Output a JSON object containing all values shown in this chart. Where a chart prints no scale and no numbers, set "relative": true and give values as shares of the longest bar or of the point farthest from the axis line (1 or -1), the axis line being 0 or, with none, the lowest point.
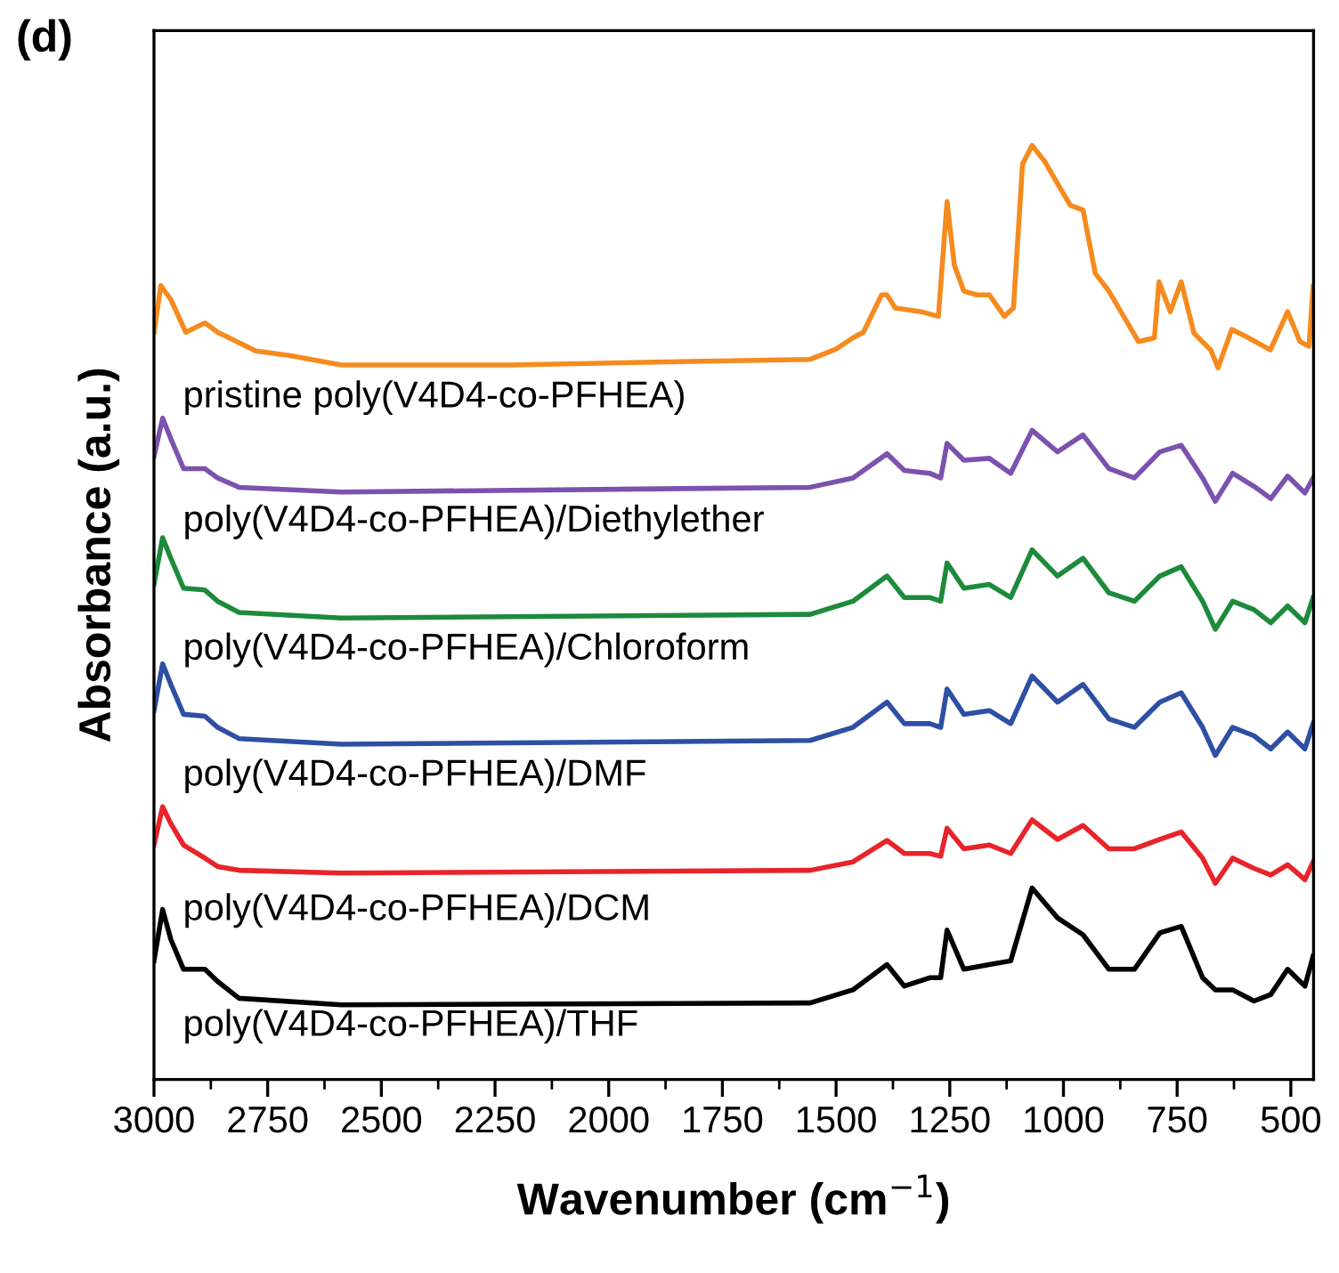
{
  "chart_data": {
    "type": "line",
    "relative": true,
    "xlabel": "Wavenumber (cm$^{−1}$)",
    "ylabel": "Absorbance (a.u.)",
    "annotations": [
      "(d)"
    ],
    "xlim": [
      3000,
      450
    ],
    "xticks": [
      3000,
      {
        "value": 2875,
        "label": null
      },
      2750,
      {
        "value": 2625,
        "label": null
      },
      2500,
      {
        "value": 2375,
        "label": null
      },
      2250,
      {
        "value": 2125,
        "label": null
      },
      2000,
      {
        "value": 1875,
        "label": null
      },
      1750,
      {
        "value": 1625,
        "label": null
      },
      1500,
      {
        "value": 1375,
        "label": null
      },
      1250,
      {
        "value": 1125,
        "label": null
      },
      1000,
      {
        "value": 875,
        "label": null
      },
      750,
      {
        "value": 625,
        "label": null
      },
      500
    ],
    "tick_labels": "x",
    "grid": false,
    "legend": false,
    "marker": "none",
    "line_style": "solid",
    "series": [
      {
        "name": "pristine poly(V4D4-co-PFHEA)",
        "color": "#f58b1f",
        "x": [
          3000,
          2985,
          2963,
          2930,
          2888,
          2860,
          2776,
          2700,
          2588,
          2400,
          2213,
          1900,
          1557,
          1500,
          1463,
          1440,
          1400,
          1388,
          1370,
          1313,
          1275,
          1256,
          1240,
          1219,
          1190,
          1163,
          1130,
          1110,
          1090,
          1069,
          1040,
          1013,
          985,
          957,
          930,
          900,
          835,
          800,
          790,
          765,
          741,
          713,
          676,
          660,
          630,
          593,
          545,
          507,
          480,
          460,
          451
        ],
        "values": [
          0.8,
          0.85,
          0.835,
          0.8,
          0.81,
          0.8,
          0.78,
          0.775,
          0.765,
          0.765,
          0.765,
          0.768,
          0.771,
          0.782,
          0.794,
          0.8,
          0.84,
          0.84,
          0.826,
          0.822,
          0.817,
          0.94,
          0.872,
          0.844,
          0.84,
          0.84,
          0.817,
          0.826,
          0.98,
          1.0,
          0.982,
          0.959,
          0.936,
          0.931,
          0.863,
          0.844,
          0.79,
          0.794,
          0.854,
          0.822,
          0.854,
          0.799,
          0.781,
          0.762,
          0.803,
          0.794,
          0.781,
          0.822,
          0.79,
          0.785,
          0.849
        ]
      },
      {
        "name": "poly(V4D4-co-PFHEA)/Diethylether",
        "color": "#7b52ae",
        "x": [
          3000,
          2981,
          2963,
          2935,
          2888,
          2860,
          2813,
          2588,
          1557,
          1463,
          1388,
          1350,
          1294,
          1270,
          1256,
          1219,
          1163,
          1116,
          1069,
          1013,
          957,
          900,
          844,
          788,
          741,
          694,
          666,
          628,
          581,
          544,
          507,
          469,
          451
        ],
        "values": [
          0.667,
          0.708,
          0.686,
          0.654,
          0.654,
          0.644,
          0.634,
          0.629,
          0.634,
          0.644,
          0.67,
          0.652,
          0.649,
          0.644,
          0.681,
          0.663,
          0.665,
          0.649,
          0.695,
          0.672,
          0.69,
          0.654,
          0.644,
          0.672,
          0.679,
          0.644,
          0.619,
          0.649,
          0.635,
          0.622,
          0.646,
          0.628,
          0.644
        ]
      },
      {
        "name": "poly(V4D4-co-PFHEA)/Chloroform",
        "color": "#1e8a3c",
        "x": [
          3000,
          2981,
          2963,
          2935,
          2888,
          2860,
          2813,
          2588,
          1557,
          1463,
          1388,
          1350,
          1294,
          1270,
          1256,
          1219,
          1163,
          1116,
          1069,
          1013,
          957,
          900,
          844,
          788,
          741,
          694,
          666,
          628,
          581,
          544,
          507,
          469,
          451
        ],
        "values": [
          0.53,
          0.58,
          0.558,
          0.526,
          0.524,
          0.512,
          0.5,
          0.494,
          0.498,
          0.512,
          0.539,
          0.516,
          0.516,
          0.512,
          0.553,
          0.526,
          0.53,
          0.516,
          0.567,
          0.539,
          0.558,
          0.521,
          0.512,
          0.539,
          0.549,
          0.512,
          0.482,
          0.512,
          0.503,
          0.489,
          0.507,
          0.489,
          0.516
        ]
      },
      {
        "name": "poly(V4D4-co-PFHEA)/DMF",
        "color": "#2e4fa3",
        "x": [
          3000,
          2981,
          2963,
          2935,
          2888,
          2860,
          2813,
          2588,
          1557,
          1463,
          1388,
          1350,
          1294,
          1270,
          1256,
          1219,
          1163,
          1116,
          1069,
          1013,
          957,
          900,
          844,
          788,
          741,
          694,
          666,
          628,
          581,
          544,
          507,
          469,
          451
        ],
        "values": [
          0.395,
          0.445,
          0.423,
          0.391,
          0.389,
          0.377,
          0.365,
          0.359,
          0.363,
          0.377,
          0.404,
          0.381,
          0.381,
          0.377,
          0.418,
          0.391,
          0.395,
          0.381,
          0.432,
          0.404,
          0.423,
          0.386,
          0.377,
          0.404,
          0.414,
          0.377,
          0.347,
          0.377,
          0.368,
          0.354,
          0.372,
          0.354,
          0.381
        ]
      },
      {
        "name": "poly(V4D4-co-PFHEA)/DCM",
        "color": "#e8242a",
        "x": [
          3000,
          2981,
          2963,
          2935,
          2888,
          2860,
          2813,
          2588,
          1557,
          1463,
          1388,
          1350,
          1294,
          1270,
          1256,
          1219,
          1163,
          1116,
          1069,
          1013,
          957,
          900,
          844,
          788,
          741,
          694,
          666,
          628,
          581,
          544,
          507,
          469,
          451
        ],
        "values": [
          0.251,
          0.292,
          0.274,
          0.251,
          0.237,
          0.228,
          0.224,
          0.221,
          0.224,
          0.233,
          0.256,
          0.242,
          0.242,
          0.239,
          0.269,
          0.247,
          0.251,
          0.242,
          0.278,
          0.257,
          0.272,
          0.247,
          0.247,
          0.257,
          0.265,
          0.237,
          0.21,
          0.237,
          0.226,
          0.219,
          0.23,
          0.214,
          0.233
        ]
      },
      {
        "name": "poly(V4D4-co-PFHEA)/THF",
        "color": "#000000",
        "x": [
          3000,
          2981,
          2963,
          2935,
          2888,
          2860,
          2813,
          2588,
          1557,
          1463,
          1388,
          1350,
          1294,
          1270,
          1256,
          1219,
          1163,
          1116,
          1069,
          1013,
          957,
          900,
          844,
          788,
          741,
          694,
          666,
          628,
          581,
          544,
          507,
          469,
          451
        ],
        "values": [
          0.127,
          0.182,
          0.15,
          0.118,
          0.118,
          0.105,
          0.087,
          0.08,
          0.082,
          0.096,
          0.123,
          0.1,
          0.109,
          0.109,
          0.16,
          0.118,
          0.123,
          0.127,
          0.205,
          0.173,
          0.155,
          0.118,
          0.118,
          0.157,
          0.164,
          0.109,
          0.096,
          0.096,
          0.084,
          0.091,
          0.118,
          0.1,
          0.132
        ]
      }
    ]
  }
}
